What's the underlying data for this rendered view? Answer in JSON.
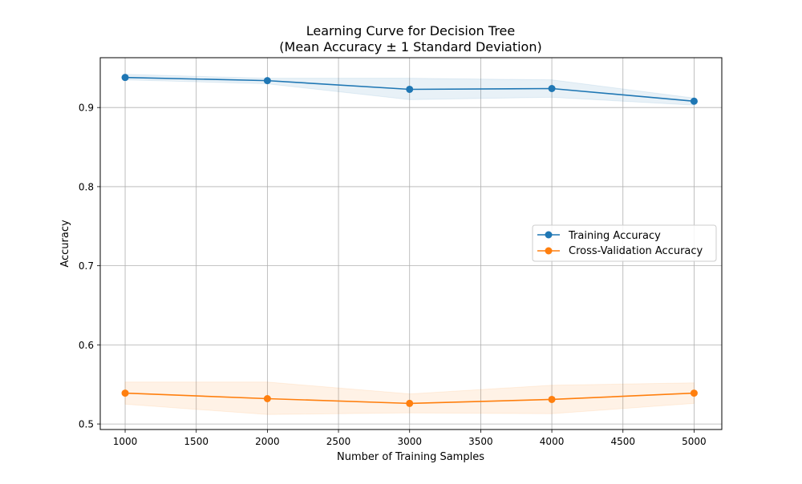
{
  "chart_data": {
    "type": "line",
    "title": "Learning Curve for Decision Tree",
    "subtitle": "(Mean Accuracy ± 1 Standard Deviation)",
    "xlabel": "Number of Training Samples",
    "ylabel": "Accuracy",
    "xlim": [
      825,
      5195
    ],
    "ylim": [
      0.493,
      0.963
    ],
    "xticks": [
      1000,
      1500,
      2000,
      2500,
      3000,
      3500,
      4000,
      4500,
      5000
    ],
    "yticks": [
      0.5,
      0.6,
      0.7,
      0.8,
      0.9
    ],
    "grid": true,
    "legend_position": "center-right",
    "x": [
      1000,
      2000,
      3000,
      4000,
      5000
    ],
    "series": [
      {
        "name": "Training Accuracy",
        "color": "#1f77b4",
        "values": [
          0.938,
          0.934,
          0.923,
          0.924,
          0.908
        ],
        "upper": [
          0.942,
          0.937,
          0.937,
          0.935,
          0.912
        ],
        "lower": [
          0.935,
          0.93,
          0.91,
          0.913,
          0.903
        ]
      },
      {
        "name": "Cross-Validation Accuracy",
        "color": "#ff7f0e",
        "values": [
          0.539,
          0.532,
          0.526,
          0.531,
          0.539
        ],
        "upper": [
          0.553,
          0.553,
          0.538,
          0.549,
          0.552
        ],
        "lower": [
          0.525,
          0.512,
          0.514,
          0.513,
          0.526
        ]
      }
    ]
  }
}
